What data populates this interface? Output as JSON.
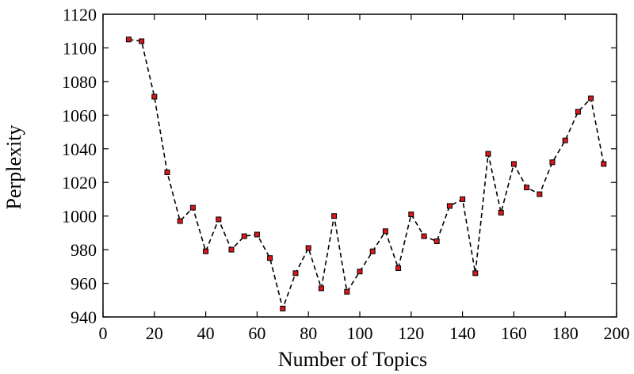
{
  "chart_data": {
    "type": "line",
    "title": "",
    "xlabel": "Number of Topics",
    "ylabel": "Perplexity",
    "xlim": [
      0,
      200
    ],
    "ylim": [
      940,
      1120
    ],
    "xticks": [
      0,
      20,
      40,
      60,
      80,
      100,
      120,
      140,
      160,
      180,
      200
    ],
    "yticks": [
      940,
      960,
      980,
      1000,
      1020,
      1040,
      1060,
      1080,
      1100,
      1120
    ],
    "grid": false,
    "legend": "none",
    "line_style": "dashed",
    "marker": "square",
    "marker_color": "#d7191c",
    "line_color": "#000000",
    "x": [
      10,
      15,
      20,
      25,
      30,
      35,
      40,
      45,
      50,
      55,
      60,
      65,
      70,
      75,
      80,
      85,
      90,
      95,
      100,
      105,
      110,
      115,
      120,
      125,
      130,
      135,
      140,
      145,
      150,
      155,
      160,
      165,
      170,
      175,
      180,
      185,
      190,
      195
    ],
    "y": [
      1105,
      1104,
      1071,
      1026,
      997,
      1005,
      979,
      998,
      980,
      988,
      989,
      975,
      945,
      966,
      981,
      957,
      1000,
      955,
      967,
      979,
      991,
      969,
      1001,
      988,
      985,
      1006,
      1010,
      966,
      1037,
      1002,
      1031,
      1017,
      1013,
      1032,
      1045,
      1062,
      1070,
      1031
    ]
  }
}
